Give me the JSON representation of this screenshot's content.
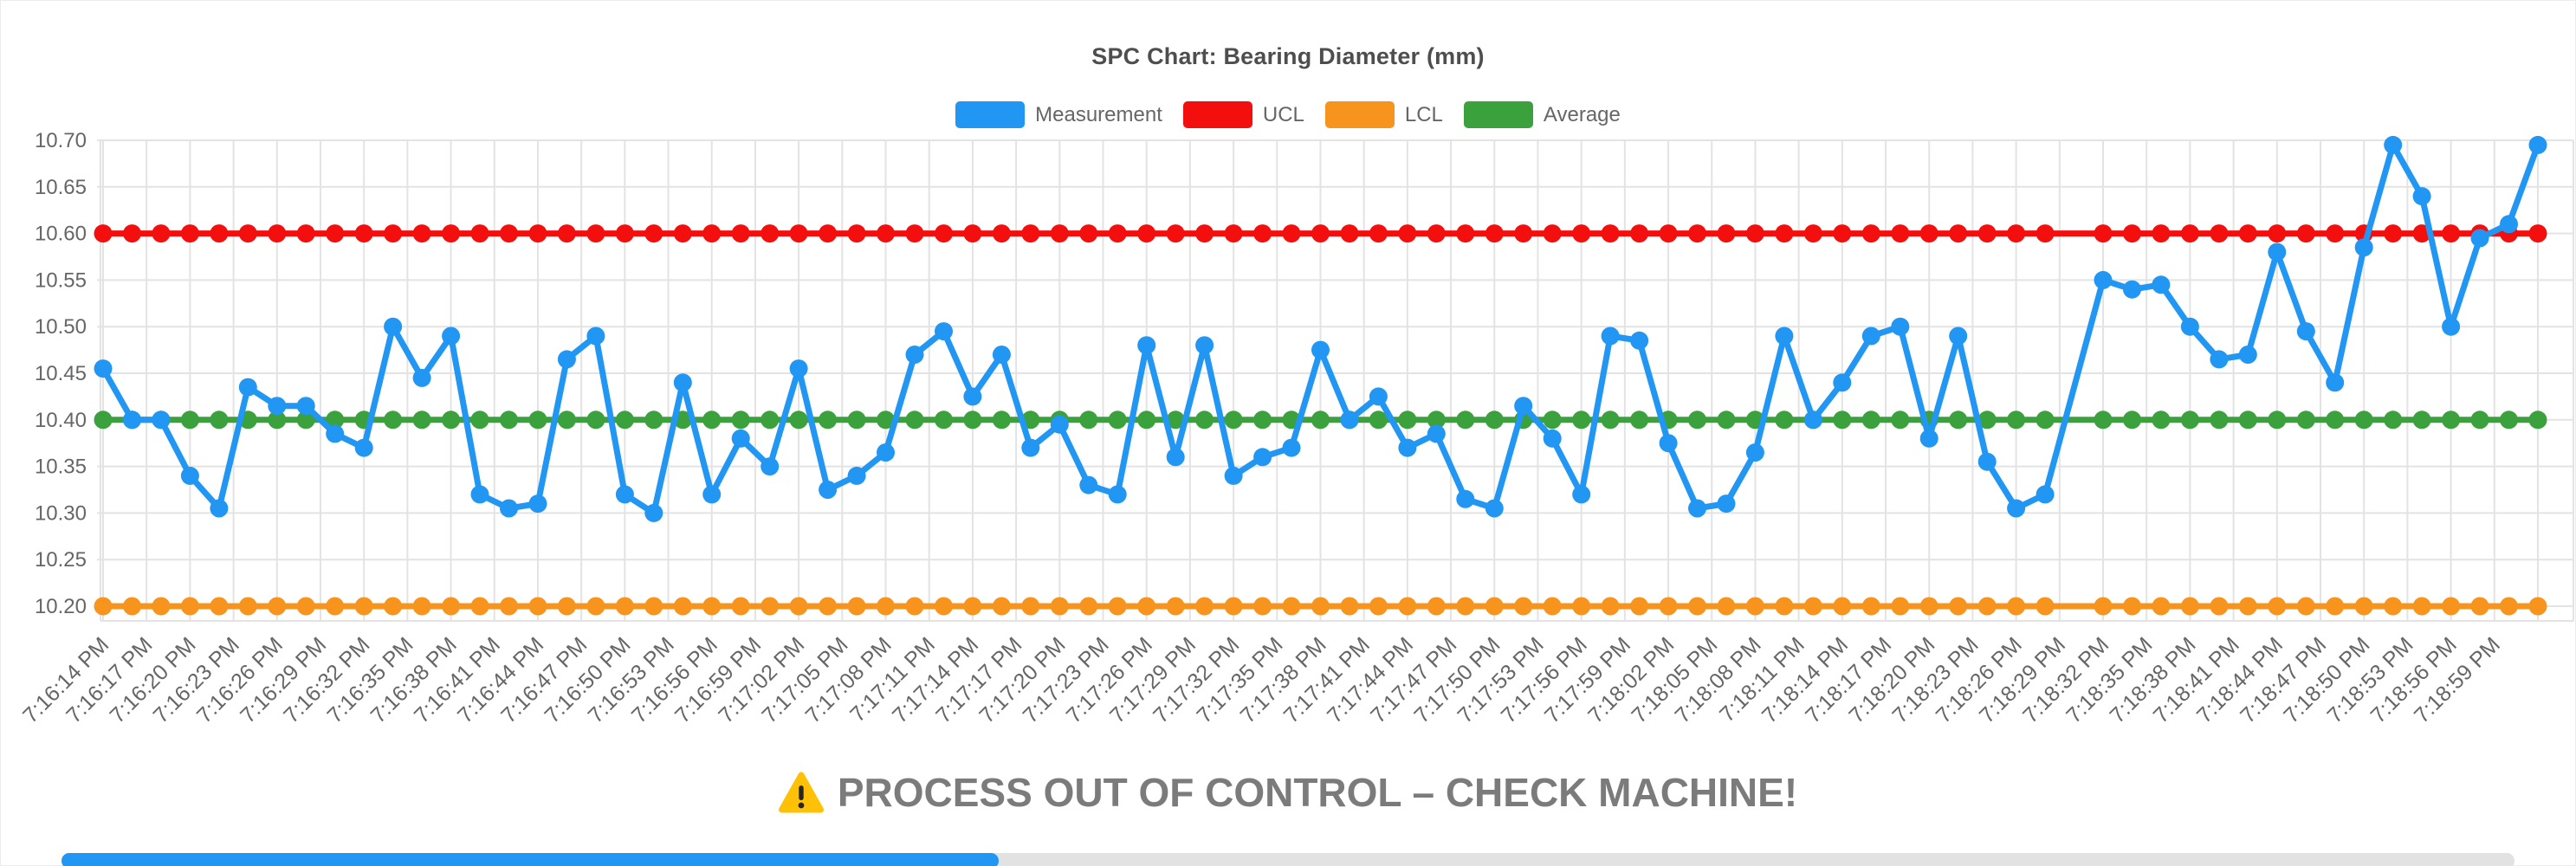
{
  "title": "SPC Chart: Bearing Diameter (mm)",
  "colors": {
    "measurement": "#2196F3",
    "ucl": "#F40F0F",
    "lcl": "#F7941E",
    "average": "#3BA13C",
    "grid": "#E3E3E3",
    "axis_text": "#666666",
    "title_text": "#4E4E4E",
    "warning_text": "#7B7B7B",
    "warning_icon": "#FFC107"
  },
  "legend": {
    "items": [
      {
        "label": "Measurement",
        "color_key": "measurement"
      },
      {
        "label": "UCL",
        "color_key": "ucl"
      },
      {
        "label": "LCL",
        "color_key": "lcl"
      },
      {
        "label": "Average",
        "color_key": "average"
      }
    ]
  },
  "warning": {
    "icon": "warning-triangle",
    "text": "PROCESS OUT OF CONTROL – CHECK MACHINE!"
  },
  "chart_data": {
    "type": "line",
    "title": "SPC Chart: Bearing Diameter (mm)",
    "xlabel": "",
    "ylabel": "",
    "ylim": [
      10.185,
      10.7
    ],
    "grid": true,
    "legend_position": "top",
    "y_tick_labels": [
      "10.70",
      "10.65",
      "10.60",
      "10.55",
      "10.50",
      "10.45",
      "10.40",
      "10.35",
      "10.30",
      "10.25",
      "10.20"
    ],
    "x_tick_labels": [
      "7:16:14 PM",
      "7:16:17 PM",
      "7:16:20 PM",
      "7:16:23 PM",
      "7:16:26 PM",
      "7:16:29 PM",
      "7:16:32 PM",
      "7:16:35 PM",
      "7:16:38 PM",
      "7:16:41 PM",
      "7:16:44 PM",
      "7:16:47 PM",
      "7:16:50 PM",
      "7:16:53 PM",
      "7:16:56 PM",
      "7:16:59 PM",
      "7:17:02 PM",
      "7:17:05 PM",
      "7:17:08 PM",
      "7:17:11 PM",
      "7:17:14 PM",
      "7:17:17 PM",
      "7:17:20 PM",
      "7:17:23 PM",
      "7:17:26 PM",
      "7:17:29 PM",
      "7:17:32 PM",
      "7:17:35 PM",
      "7:17:38 PM",
      "7:17:41 PM",
      "7:17:44 PM",
      "7:17:47 PM",
      "7:17:50 PM",
      "7:17:53 PM",
      "7:17:56 PM",
      "7:17:59 PM",
      "7:18:02 PM",
      "7:18:05 PM",
      "7:18:08 PM",
      "7:18:11 PM",
      "7:18:14 PM",
      "7:18:17 PM",
      "7:18:20 PM",
      "7:18:23 PM",
      "7:18:26 PM",
      "7:18:29 PM",
      "7:18:32 PM",
      "7:18:35 PM",
      "7:18:38 PM",
      "7:18:41 PM",
      "7:18:44 PM",
      "7:18:47 PM",
      "7:18:50 PM",
      "7:18:53 PM",
      "7:18:56 PM",
      "7:18:59 PM"
    ],
    "sample_interval_seconds": 2,
    "tick_interval_seconds": 3,
    "start_time": "7:16:14 PM",
    "ucl": 10.6,
    "lcl": 10.2,
    "average": 10.4,
    "series": [
      {
        "name": "Measurement",
        "color_key": "measurement",
        "values": [
          10.455,
          10.4,
          10.4,
          10.34,
          10.305,
          10.435,
          10.415,
          10.415,
          10.385,
          10.37,
          10.5,
          10.445,
          10.49,
          10.32,
          10.305,
          10.31,
          10.465,
          10.49,
          10.32,
          10.3,
          10.44,
          10.32,
          10.38,
          10.35,
          10.455,
          10.325,
          10.34,
          10.365,
          10.47,
          10.495,
          10.425,
          10.47,
          10.37,
          10.395,
          10.33,
          10.32,
          10.48,
          10.36,
          10.48,
          10.34,
          10.36,
          10.37,
          10.475,
          10.4,
          10.425,
          10.37,
          10.385,
          10.315,
          10.305,
          10.415,
          10.38,
          10.32,
          10.49,
          10.485,
          10.375,
          10.305,
          10.31,
          10.365,
          10.49,
          10.4,
          10.44,
          10.49,
          10.5,
          10.38,
          10.49,
          10.355,
          10.305,
          10.32,
          null,
          10.55,
          10.54,
          10.545,
          10.5,
          10.465,
          10.47,
          10.58,
          10.495,
          10.44,
          10.585,
          10.695,
          10.64,
          10.5,
          10.595,
          10.61,
          10.695
        ]
      },
      {
        "name": "UCL",
        "color_key": "ucl",
        "constant_value": 10.6
      },
      {
        "name": "LCL",
        "color_key": "lcl",
        "constant_value": 10.2
      },
      {
        "name": "Average",
        "color_key": "average",
        "constant_value": 10.4
      }
    ]
  },
  "scrollbar": {
    "thumb_position": "left"
  }
}
